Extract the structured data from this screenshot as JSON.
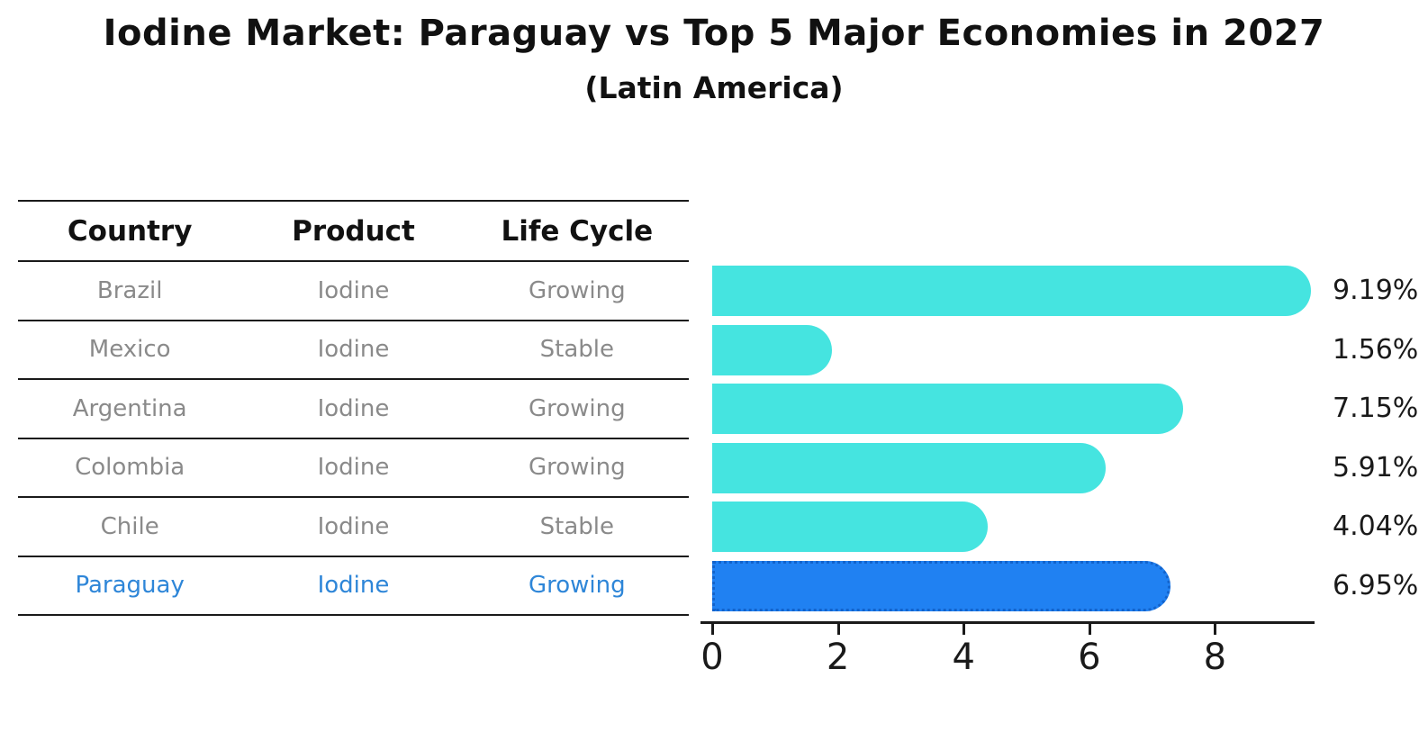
{
  "title": "Iodine Market: Paraguay vs Top 5 Major Economies in 2027",
  "subtitle": "(Latin America)",
  "table": {
    "headers": {
      "country": "Country",
      "product": "Product",
      "life_cycle": "Life Cycle"
    },
    "rows": [
      {
        "country": "Brazil",
        "product": "Iodine",
        "life_cycle": "Growing"
      },
      {
        "country": "Mexico",
        "product": "Iodine",
        "life_cycle": "Stable"
      },
      {
        "country": "Argentina",
        "product": "Iodine",
        "life_cycle": "Growing"
      },
      {
        "country": "Colombia",
        "product": "Iodine",
        "life_cycle": "Growing"
      },
      {
        "country": "Chile",
        "product": "Iodine",
        "life_cycle": "Stable"
      },
      {
        "country": "Paraguay",
        "product": "Iodine",
        "life_cycle": "Growing"
      }
    ],
    "highlight_row": 5
  },
  "chart_data": {
    "type": "bar",
    "orientation": "horizontal",
    "title": "Iodine Market: Paraguay vs Top 5 Major Economies in 2027",
    "subtitle": "(Latin America)",
    "categories": [
      "Brazil",
      "Mexico",
      "Argentina",
      "Colombia",
      "Chile",
      "Paraguay"
    ],
    "values": [
      9.19,
      1.56,
      7.15,
      5.91,
      4.04,
      6.95
    ],
    "value_labels": [
      "9.19%",
      "1.56%",
      "7.15%",
      "5.91%",
      "4.04%",
      "6.95%"
    ],
    "xticks": [
      "0",
      "2",
      "4",
      "6",
      "8"
    ],
    "xlim": [
      0,
      9.6
    ],
    "grid": false,
    "legend": false,
    "highlight_index": 5
  },
  "colors": {
    "bar": "#45e4e0",
    "highlight_bar": "#2081f2",
    "highlight_bar_border": "#1263cc",
    "highlight_text": "#2e86d8",
    "value_text": "#1a1a1a",
    "cell_text": "#8a8a8a",
    "line": "#1a1a1a"
  }
}
